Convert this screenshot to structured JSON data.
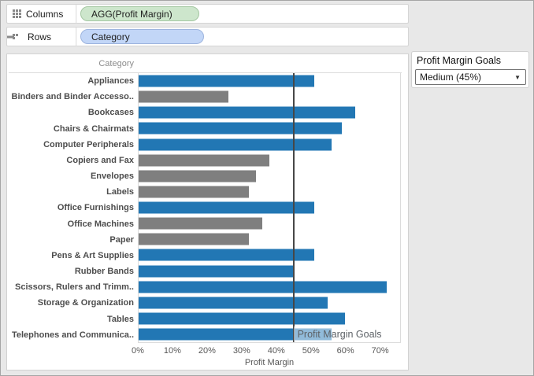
{
  "shelves": {
    "columns": {
      "label": "Columns",
      "pill": "AGG(Profit Margin)"
    },
    "rows": {
      "label": "Rows",
      "pill": "Category"
    }
  },
  "parameter": {
    "title": "Profit Margin Goals",
    "value": "Medium (45%)"
  },
  "chart_data": {
    "type": "bar",
    "orientation": "horizontal",
    "column_header": "Category",
    "xlabel": "Profit Margin",
    "x_ticks": [
      "0%",
      "10%",
      "20%",
      "30%",
      "40%",
      "50%",
      "60%",
      "70%"
    ],
    "x_tick_values": [
      0,
      10,
      20,
      30,
      40,
      50,
      60,
      70
    ],
    "xlim": [
      0,
      76
    ],
    "grid": false,
    "categories": [
      "Appliances",
      "Binders and Binder Accesso..",
      "Bookcases",
      "Chairs & Chairmats",
      "Computer Peripherals",
      "Copiers and Fax",
      "Envelopes",
      "Labels",
      "Office Furnishings",
      "Office Machines",
      "Paper",
      "Pens & Art Supplies",
      "Rubber Bands",
      "Scissors, Rulers and Trimm..",
      "Storage & Organization",
      "Tables",
      "Telephones and Communica.."
    ],
    "values": [
      51,
      26,
      63,
      59,
      56,
      38,
      34,
      32,
      51,
      36,
      32,
      51,
      45,
      72,
      55,
      60,
      56
    ],
    "reference_line": {
      "value": 45,
      "label": "Profit Margin Goals"
    },
    "colors": {
      "goal_met": "#2277b4",
      "goal_not_met": "#7f7f7f",
      "reference_line": "#474747"
    }
  }
}
